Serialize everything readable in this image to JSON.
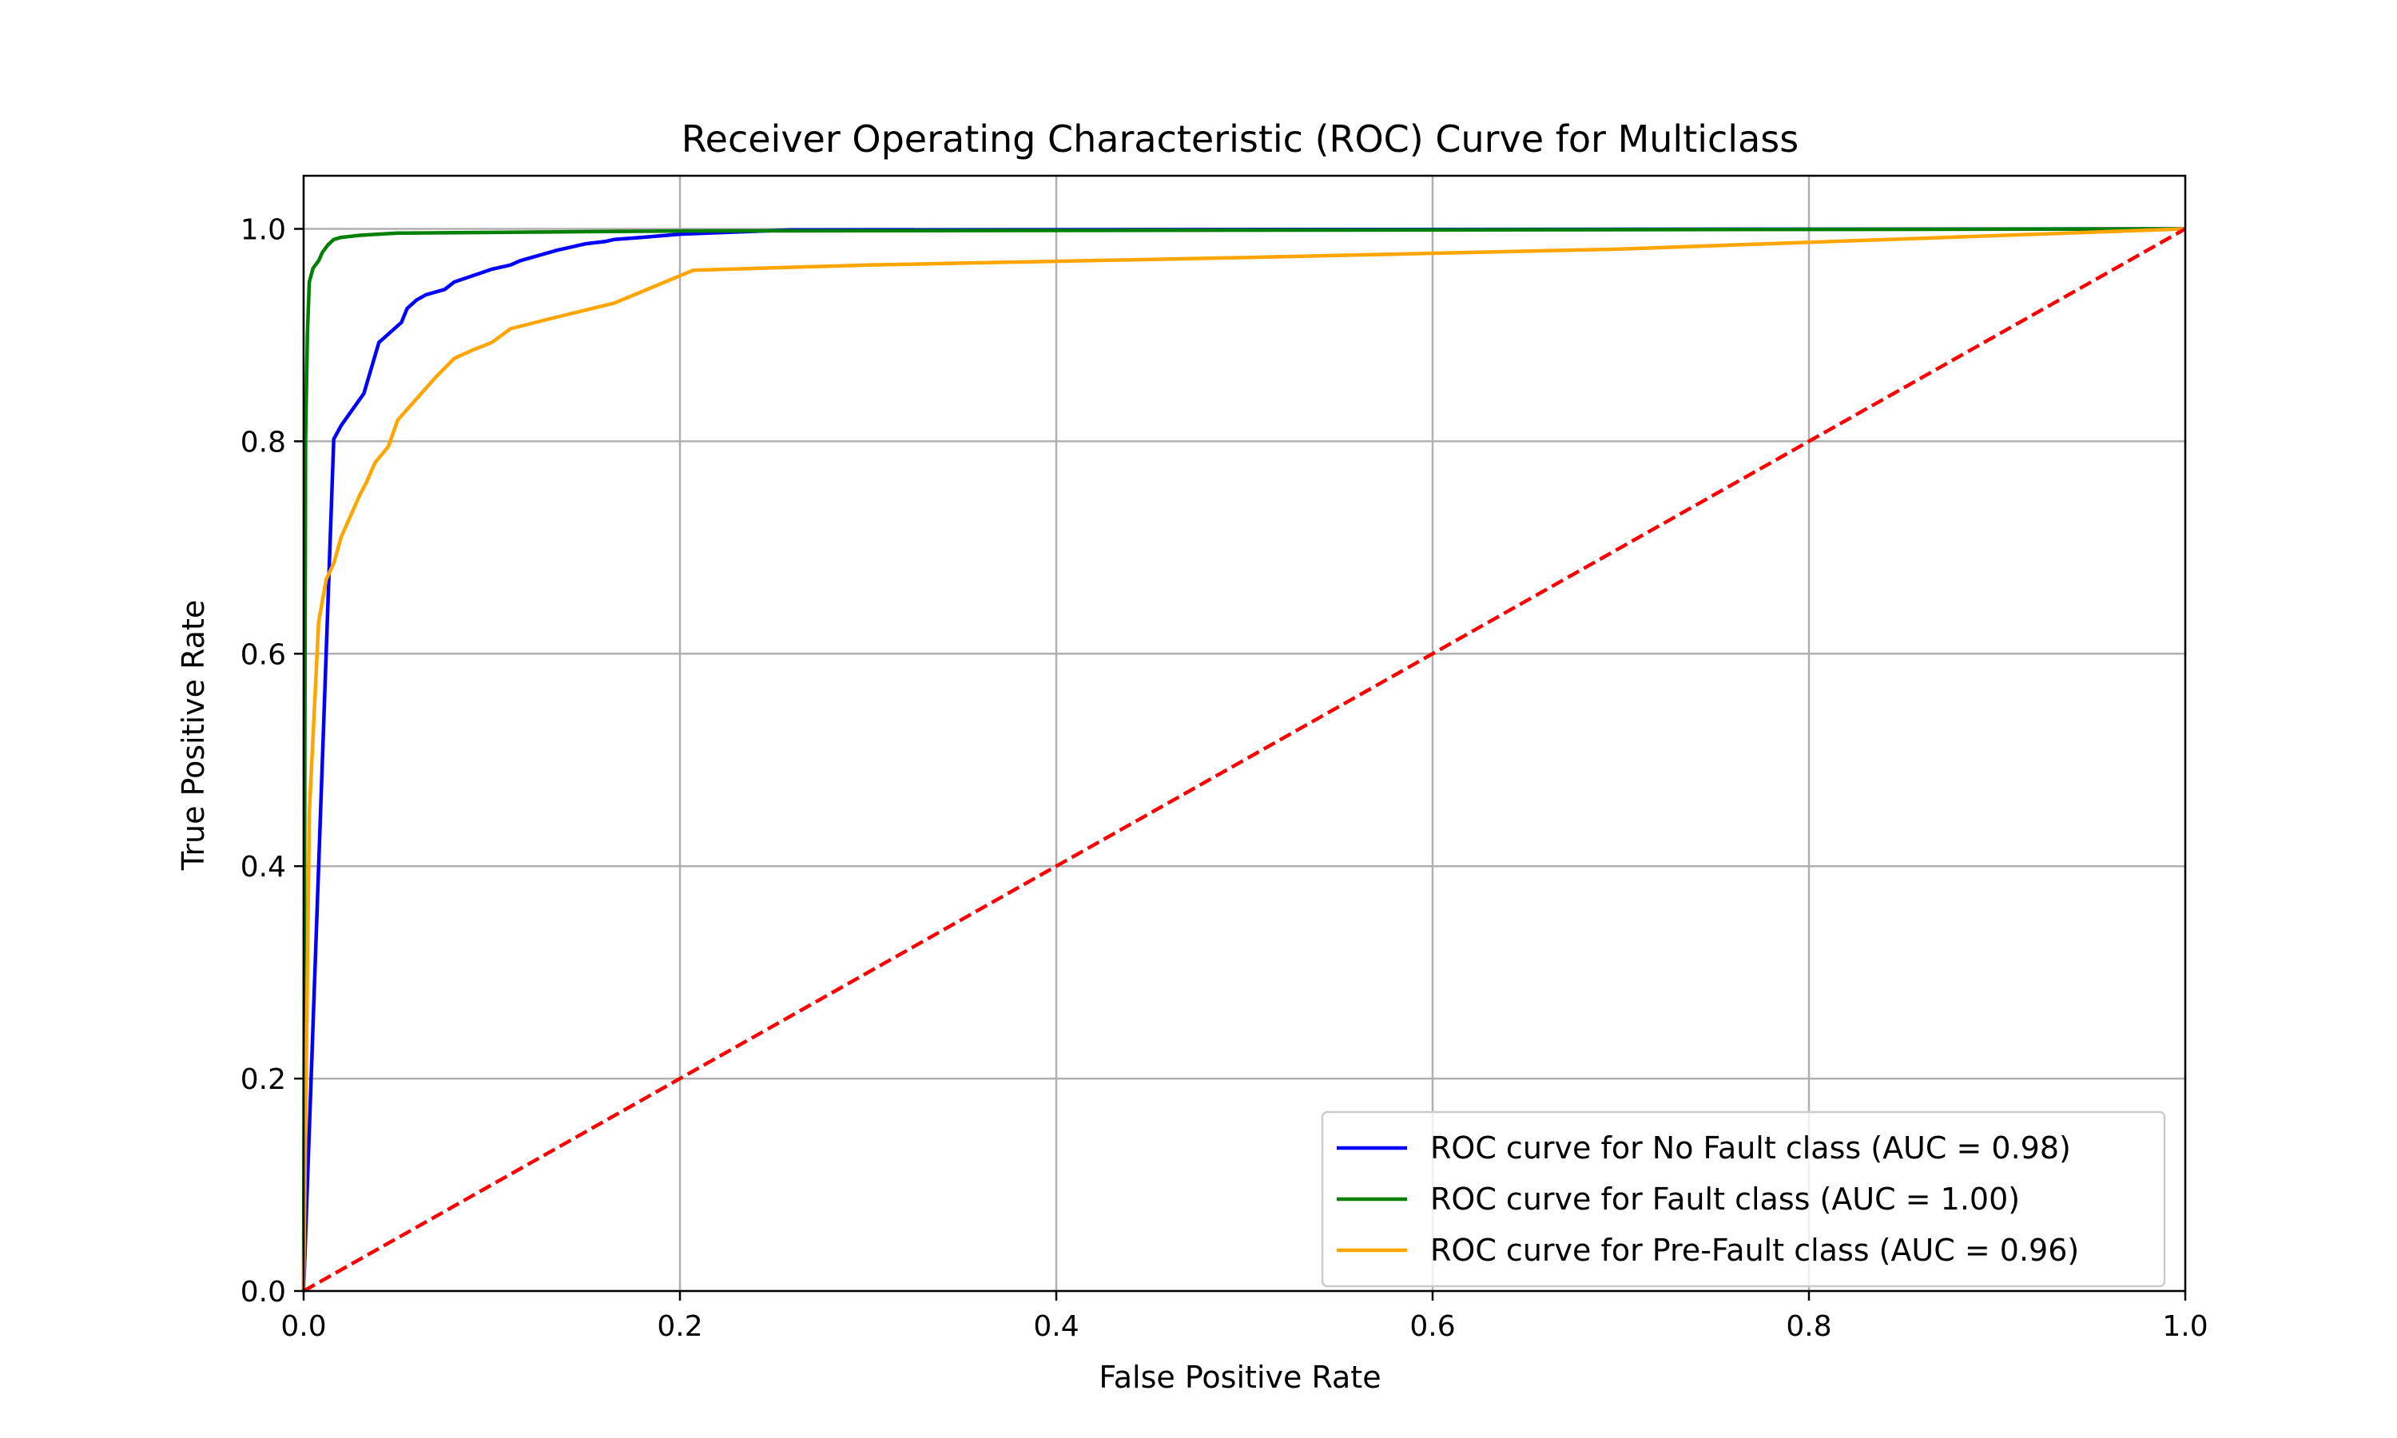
{
  "chart_data": {
    "type": "line",
    "title": "Receiver Operating Characteristic (ROC) Curve for Multiclass",
    "xlabel": "False Positive Rate",
    "ylabel": "True Positive Rate",
    "xlim": [
      0.0,
      1.0
    ],
    "ylim": [
      0.0,
      1.05
    ],
    "x_ticks": [
      0.0,
      0.2,
      0.4,
      0.6,
      0.8,
      1.0
    ],
    "y_ticks": [
      0.0,
      0.2,
      0.4,
      0.6,
      0.8,
      1.0
    ],
    "x_tick_labels": [
      "0.0",
      "0.2",
      "0.4",
      "0.6",
      "0.8",
      "1.0"
    ],
    "y_tick_labels": [
      "0.0",
      "0.2",
      "0.4",
      "0.6",
      "0.8",
      "1.0"
    ],
    "grid": true,
    "legend_position": "lower-right",
    "series": [
      {
        "name": "ROC curve for No Fault class (AUC = 0.98)",
        "color": "#0000ff",
        "style": "solid",
        "x": [
          0.0,
          0.016,
          0.02,
          0.032,
          0.04,
          0.052,
          0.055,
          0.06,
          0.065,
          0.075,
          0.08,
          0.09,
          0.1,
          0.11,
          0.115,
          0.125,
          0.135,
          0.14,
          0.15,
          0.16,
          0.165,
          0.18,
          0.2,
          0.26,
          1.0
        ],
        "y": [
          0.0,
          0.802,
          0.815,
          0.845,
          0.893,
          0.912,
          0.925,
          0.933,
          0.938,
          0.943,
          0.95,
          0.956,
          0.962,
          0.966,
          0.97,
          0.975,
          0.98,
          0.982,
          0.986,
          0.988,
          0.99,
          0.992,
          0.995,
          0.999,
          1.0
        ]
      },
      {
        "name": "ROC curve for Fault class (AUC = 1.00)",
        "color": "#008000",
        "style": "solid",
        "x": [
          0.0,
          0.001,
          0.002,
          0.003,
          0.005,
          0.008,
          0.01,
          0.013,
          0.016,
          0.02,
          0.025,
          0.03,
          0.05,
          0.2,
          1.0
        ],
        "y": [
          0.0,
          0.8,
          0.9,
          0.95,
          0.963,
          0.97,
          0.978,
          0.985,
          0.99,
          0.992,
          0.993,
          0.994,
          0.996,
          0.998,
          1.0
        ]
      },
      {
        "name": "ROC curve for Pre-Fault class (AUC = 0.96)",
        "color": "#ffa500",
        "style": "solid",
        "x": [
          0.0,
          0.003,
          0.008,
          0.012,
          0.016,
          0.02,
          0.025,
          0.03,
          0.033,
          0.038,
          0.045,
          0.05,
          0.06,
          0.07,
          0.08,
          0.09,
          0.1,
          0.11,
          0.13,
          0.165,
          0.207,
          0.3,
          0.5,
          0.7,
          1.0
        ],
        "y": [
          0.0,
          0.45,
          0.63,
          0.67,
          0.685,
          0.71,
          0.73,
          0.75,
          0.76,
          0.78,
          0.795,
          0.82,
          0.84,
          0.86,
          0.878,
          0.886,
          0.893,
          0.906,
          0.915,
          0.93,
          0.961,
          0.966,
          0.973,
          0.981,
          1.0
        ]
      },
      {
        "name": "",
        "color": "#ff0000",
        "style": "dashed",
        "x": [
          0.0,
          1.0
        ],
        "y": [
          0.0,
          1.0
        ]
      }
    ]
  }
}
